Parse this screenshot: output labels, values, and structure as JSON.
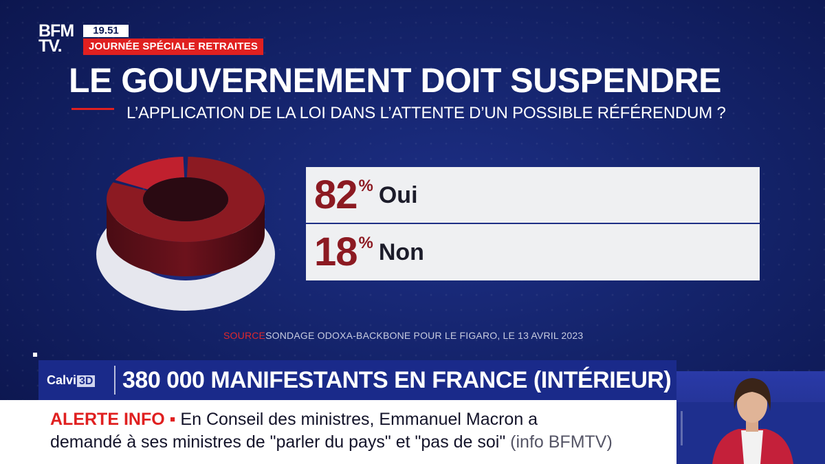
{
  "header": {
    "logo_line1": "BFM",
    "logo_line2": "TV.",
    "clock": "19.51",
    "program": "JOURNÉE SPÉCIALE RETRAITES"
  },
  "question": {
    "title": "LE GOUVERNEMENT DOIT SUSPENDRE",
    "subtitle": "L’APPLICATION DE LA LOI DANS L’ATTENTE D’UN POSSIBLE RÉFÉRENDUM ?"
  },
  "chart_data": {
    "type": "pie",
    "style": "3d-donut",
    "title": "LE GOUVERNEMENT DOIT SUSPENDRE L’APPLICATION DE LA LOI DANS L’ATTENTE D’UN POSSIBLE RÉFÉRENDUM ?",
    "categories": [
      "Oui",
      "Non"
    ],
    "values": [
      82,
      18
    ],
    "unit": "%",
    "colors": [
      "#8c1a22",
      "#c0202e"
    ]
  },
  "answers": [
    {
      "value": "82",
      "sign": "%",
      "label": "Oui"
    },
    {
      "value": "18",
      "sign": "%",
      "label": "Non"
    }
  ],
  "source": {
    "key": "SOURCE",
    "text": "SONDAGE ODOXA-BACKBONE POUR LE FIGARO, LE 13 AVRIL 2023"
  },
  "ticker": {
    "brand": "Calvi",
    "brand_suffix": "3D",
    "headline": "380 000 MANIFESTANTS EN FRANCE (INTÉRIEUR)"
  },
  "alert": {
    "label": "ALERTE INFO ▪",
    "line1": " En Conseil des ministres, Emmanuel Macron a",
    "line2": "demandé à ses ministres de \"parler du pays\" et \"pas de soi\"",
    "info": "  (info BFMTV)"
  }
}
